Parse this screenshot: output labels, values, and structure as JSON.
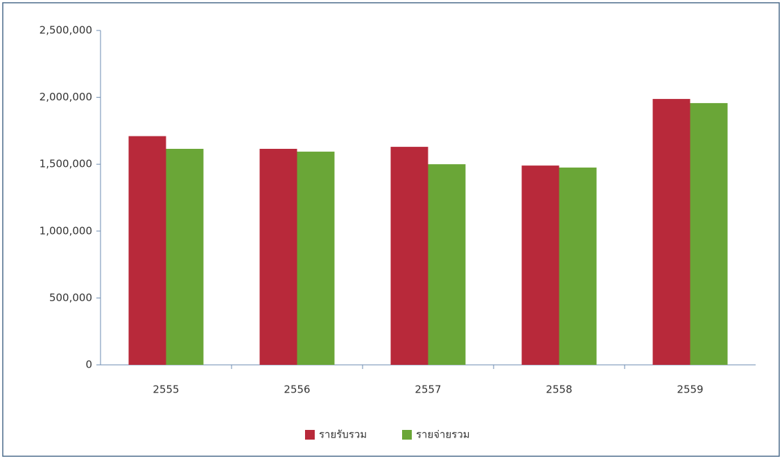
{
  "chart_data": {
    "type": "bar",
    "categories": [
      "2555",
      "2556",
      "2557",
      "2558",
      "2559"
    ],
    "series": [
      {
        "name": "รายรับรวม",
        "color": "#b8293a",
        "values": [
          1710000,
          1615000,
          1630000,
          1490000,
          1988000
        ]
      },
      {
        "name": "รายจ่ายรวม",
        "color": "#6aa637",
        "values": [
          1615000,
          1594000,
          1500000,
          1475000,
          1957000
        ]
      }
    ],
    "ylim": [
      0,
      2500000
    ],
    "yticks": [
      0,
      {
        "value": 500000,
        "label": "500,000"
      },
      {
        "value": 1000000,
        "label": "1,000,000"
      },
      {
        "value": 1500000,
        "label": "1,500,000"
      },
      {
        "value": 2000000,
        "label": "2,000,000"
      },
      {
        "value": 2500000,
        "label": "2,500,000"
      }
    ],
    "grid": false,
    "legend": "bottom"
  }
}
